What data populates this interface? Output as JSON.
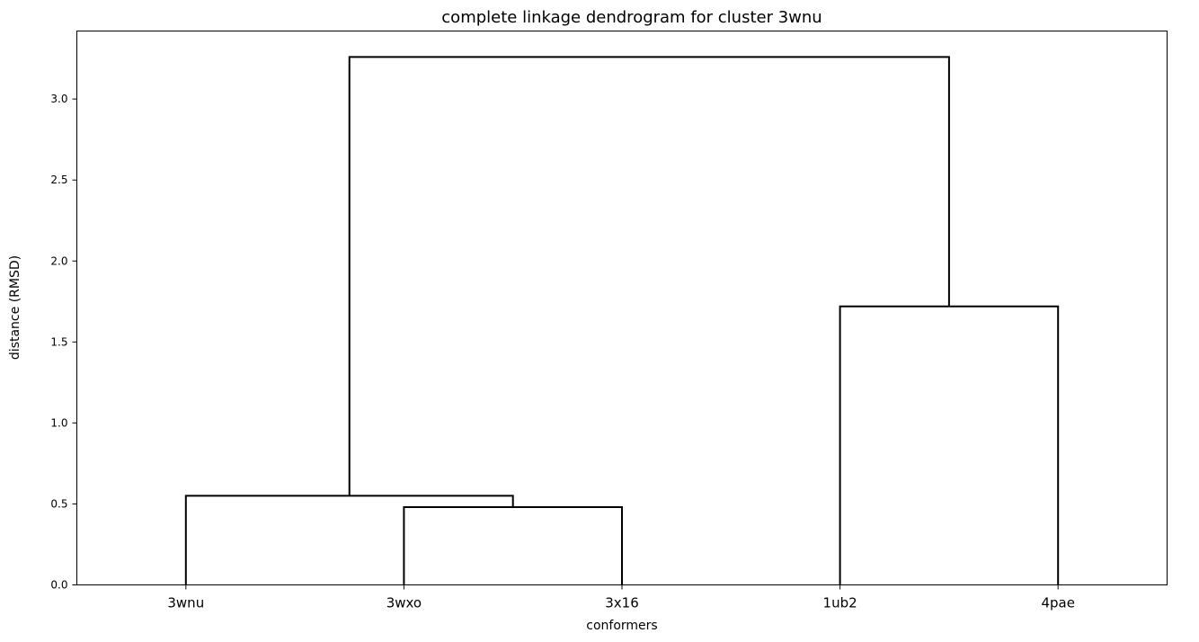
{
  "chart_data": {
    "type": "dendrogram",
    "title": "complete linkage dendrogram for cluster 3wnu",
    "xlabel": "conformers",
    "ylabel": "distance (RMSD)",
    "leaves": [
      "3wnu",
      "3wxo",
      "3x16",
      "1ub2",
      "4pae"
    ],
    "ylim": [
      0,
      3.42
    ],
    "yticks": [
      0.0,
      0.5,
      1.0,
      1.5,
      2.0,
      2.5,
      3.0
    ],
    "ytick_labels": [
      "0.0",
      "0.5",
      "1.0",
      "1.5",
      "2.0",
      "2.5",
      "3.0"
    ],
    "merges": [
      {
        "left": "3wxo",
        "right": "3x16",
        "height": 0.48
      },
      {
        "left": "3wnu",
        "right": "(3wxo, 3x16)",
        "height": 0.55
      },
      {
        "left": "1ub2",
        "right": "4pae",
        "height": 1.72
      },
      {
        "left": "(3wnu, 3wxo, 3x16)",
        "right": "(1ub2, 4pae)",
        "height": 3.26
      }
    ],
    "grid": false,
    "line_color": "#000000"
  }
}
